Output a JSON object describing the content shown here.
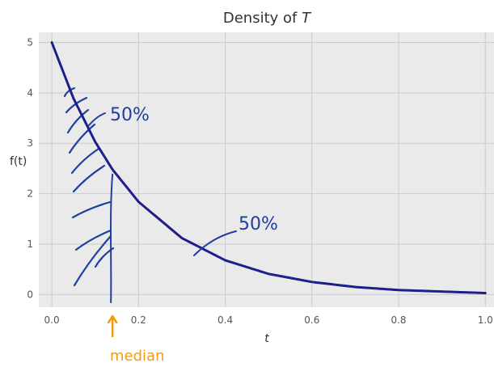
{
  "chart_data": {
    "type": "line",
    "title": "Density of T",
    "title_prefix": "Density of ",
    "title_var": "T",
    "xlabel": "t",
    "ylabel": "f(t)",
    "xlim": [
      -0.03,
      1.02
    ],
    "ylim": [
      -0.25,
      5.2
    ],
    "xticks": [
      0.0,
      0.2,
      0.4,
      0.6,
      0.8,
      1.0
    ],
    "xtick_labels": [
      "0.0",
      "0.2",
      "0.4",
      "0.6",
      "0.8",
      "1.0"
    ],
    "yticks": [
      0,
      1,
      2,
      3,
      4,
      5
    ],
    "ytick_labels": [
      "0",
      "1",
      "2",
      "3",
      "4",
      "5"
    ],
    "grid": true,
    "background": "#eaeaea",
    "series": [
      {
        "x": [
          0.0,
          0.05,
          0.1,
          0.14,
          0.2,
          0.3,
          0.4,
          0.5,
          0.6,
          0.7,
          0.8,
          0.9,
          1.0
        ],
        "y": [
          5.0,
          3.89,
          3.03,
          2.48,
          1.84,
          1.12,
          0.68,
          0.41,
          0.25,
          0.15,
          0.09,
          0.06,
          0.03
        ],
        "color": "#1e1e8c"
      }
    ],
    "annotations": {
      "left_area_label": "50%",
      "right_area_label": "50%",
      "median_label": "median",
      "median_x": 0.14,
      "annotation_color": "#1f3fa0",
      "median_color": "#f29a0a"
    }
  }
}
